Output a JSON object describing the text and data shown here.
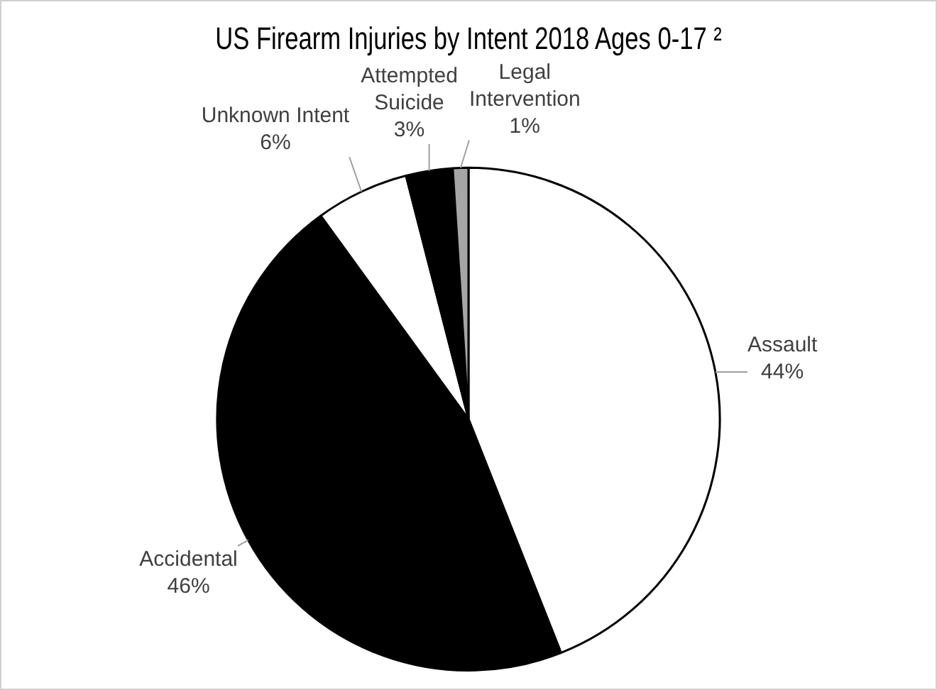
{
  "chart_data": {
    "type": "pie",
    "title": "US Firearm Injuries by Intent 2018 Ages 0-17 ²",
    "categories": [
      "Assault",
      "Accidental",
      "Unknown Intent",
      "Attempted Suicide",
      "Legal Intervention"
    ],
    "values": [
      44,
      46,
      6,
      3,
      1
    ],
    "colors": [
      "#ffffff",
      "#000000",
      "#ffffff",
      "#000000",
      "#a6a6a6"
    ],
    "value_labels": [
      "44%",
      "46%",
      "6%",
      "3%",
      "1%"
    ],
    "legend": false
  }
}
